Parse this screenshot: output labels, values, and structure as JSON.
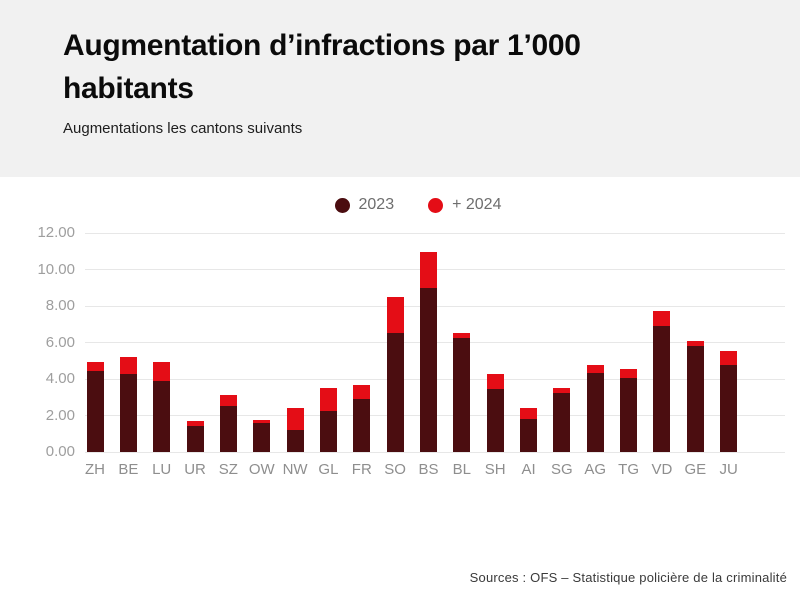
{
  "header": {
    "title": "Augmentation d’infractions par 1’000 habitants",
    "subtitle": "Augmentations les cantons suivants"
  },
  "legend": {
    "items": [
      {
        "label": "2023",
        "color": "#4b0d10"
      },
      {
        "label": "+ 2024",
        "color": "#e40d16"
      }
    ]
  },
  "footer": {
    "source": "Sources : OFS – Statistique policière de la criminalité"
  },
  "colors": {
    "series_2023": "#4b0d10",
    "series_2024": "#e40d16",
    "header_background": "#f1f1f1",
    "grid_line": "#e7e7e7"
  },
  "chart_data": {
    "type": "bar",
    "stacked": true,
    "title": "Augmentation d’infractions par 1’000 habitants",
    "subtitle": "Augmentations les cantons suivants",
    "categories": [
      "ZH",
      "BE",
      "LU",
      "UR",
      "SZ",
      "OW",
      "NW",
      "GL",
      "FR",
      "SO",
      "BS",
      "BL",
      "SH",
      "AI",
      "SG",
      "AG",
      "TG",
      "VD",
      "GE",
      "JU"
    ],
    "series": [
      {
        "name": "2023",
        "color": "#4b0d10",
        "values": [
          4.45,
          4.3,
          3.9,
          1.4,
          2.5,
          1.6,
          1.2,
          2.25,
          2.9,
          6.5,
          9.0,
          6.25,
          3.45,
          1.8,
          3.25,
          4.35,
          4.05,
          6.9,
          5.8,
          4.75
        ]
      },
      {
        "name": "+ 2024",
        "color": "#e40d16",
        "values": [
          0.5,
          0.9,
          1.05,
          0.3,
          0.6,
          0.15,
          1.2,
          1.25,
          0.75,
          2.0,
          1.95,
          0.25,
          0.85,
          0.6,
          0.25,
          0.4,
          0.5,
          0.8,
          0.3,
          0.8
        ]
      }
    ],
    "totals": [
      4.95,
      5.2,
      4.95,
      1.7,
      3.1,
      1.75,
      2.4,
      3.5,
      3.65,
      8.5,
      10.95,
      6.5,
      4.3,
      2.4,
      3.5,
      4.75,
      4.55,
      7.7,
      6.1,
      5.55
    ],
    "ylim": [
      0,
      12
    ],
    "yticks": [
      12,
      10,
      8,
      6,
      4,
      2,
      0
    ],
    "ytick_labels": [
      "12.00",
      "10.00",
      "8.00",
      "6.00",
      "4.00",
      "2.00",
      "0.00"
    ],
    "grid": true,
    "legend_position": "top-center"
  }
}
